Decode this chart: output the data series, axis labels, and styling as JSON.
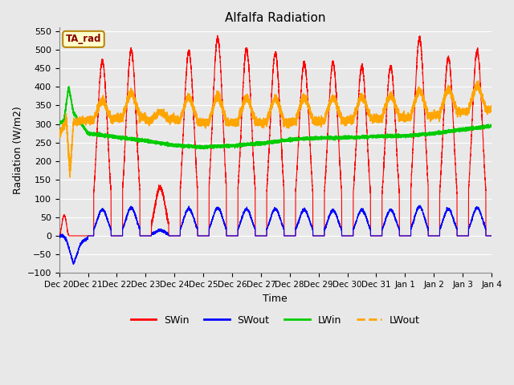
{
  "title": "Alfalfa Radiation",
  "xlabel": "Time",
  "ylabel": "Radiation (W/m2)",
  "ylim": [
    -100,
    560
  ],
  "yticks": [
    -100,
    -50,
    0,
    50,
    100,
    150,
    200,
    250,
    300,
    350,
    400,
    450,
    500,
    550
  ],
  "xtick_labels": [
    "Dec 20",
    "Dec 21",
    "Dec 22",
    "Dec 23",
    "Dec 24",
    "Dec 25",
    "Dec 26",
    "Dec 27",
    "Dec 28",
    "Dec 29",
    "Dec 30",
    "Dec 31",
    "Jan 1",
    "Jan 2",
    "Jan 3",
    "Jan 4"
  ],
  "legend_labels": [
    "SWin",
    "SWout",
    "LWin",
    "LWout"
  ],
  "annotation_text": "TA_rad",
  "bg_color": "#e8e8e8",
  "grid_color": "#ffffff",
  "fig_color": "#e8e8e8",
  "colors": {
    "SWin": "#ff0000",
    "SWout": "#0000ff",
    "LWin": "#00cc00",
    "LWout": "#ffa500"
  }
}
